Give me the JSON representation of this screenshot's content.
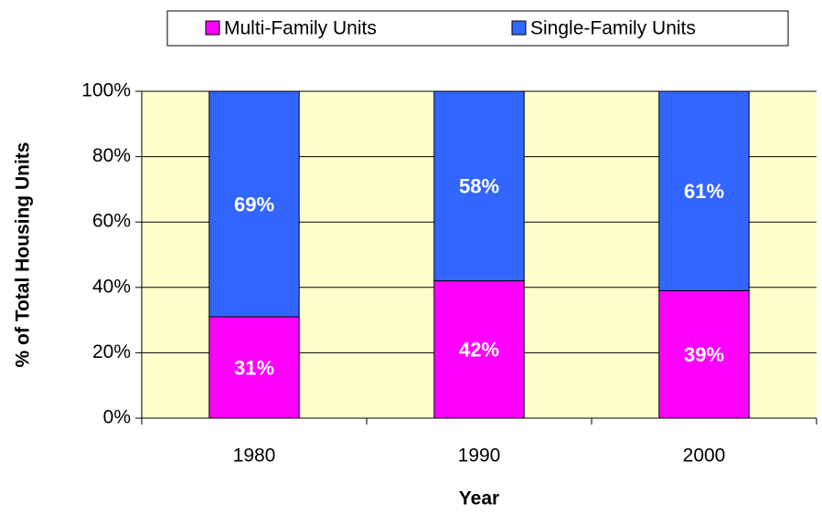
{
  "chart_data": {
    "type": "stacked_bar",
    "categories": [
      "1980",
      "1990",
      "2000"
    ],
    "series": [
      {
        "name": "Multi-Family Units",
        "color": "#ff00ff",
        "values": [
          31,
          42,
          39
        ],
        "value_labels": [
          "31%",
          "42%",
          "39%"
        ]
      },
      {
        "name": "Single-Family Units",
        "color": "#3366ff",
        "values": [
          69,
          58,
          61
        ],
        "value_labels": [
          "69%",
          "58%",
          "61%"
        ]
      }
    ],
    "x_label": "Year",
    "y_label": "% of Total Housing Units",
    "ylim": [
      0,
      100
    ],
    "yticks": [
      {
        "value": 0,
        "label": "0%"
      },
      {
        "value": 20,
        "label": "20%"
      },
      {
        "value": 40,
        "label": "40%"
      },
      {
        "value": 60,
        "label": "60%"
      },
      {
        "value": 80,
        "label": "80%"
      },
      {
        "value": 100,
        "label": "100%"
      }
    ],
    "grid": true,
    "plot_background": "#ffffcc",
    "legend": "top"
  }
}
